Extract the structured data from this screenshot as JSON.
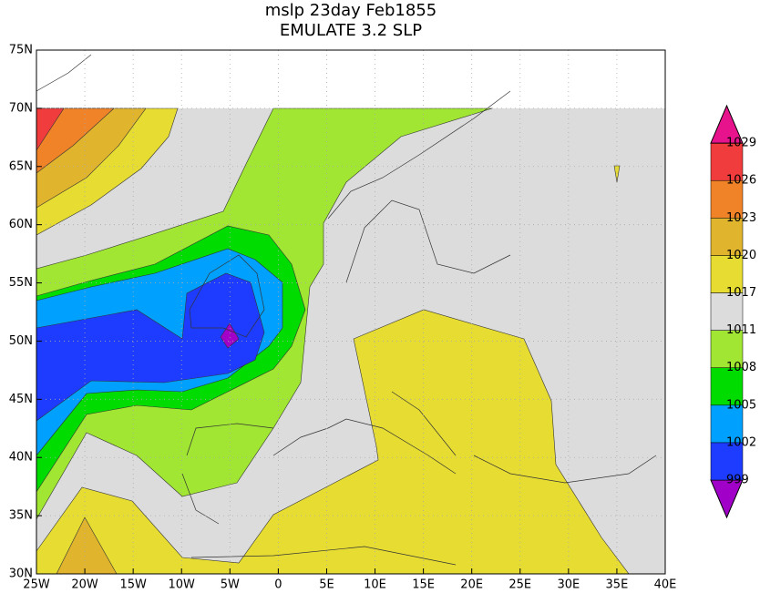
{
  "title_lines": [
    "mslp 23day Feb1855",
    "EMULATE 3.2 SLP"
  ],
  "map": {
    "xlim": [
      -25,
      40
    ],
    "ylim": [
      30,
      75
    ],
    "xticks": [
      {
        "value": -25,
        "label": "25W"
      },
      {
        "value": -20,
        "label": "20W"
      },
      {
        "value": -15,
        "label": "15W"
      },
      {
        "value": -10,
        "label": "10W"
      },
      {
        "value": -5,
        "label": "5W"
      },
      0,
      {
        "value": 5,
        "label": "5E"
      },
      {
        "value": 10,
        "label": "10E"
      },
      {
        "value": 15,
        "label": "15E"
      },
      {
        "value": 20,
        "label": "20E"
      },
      {
        "value": 25,
        "label": "25E"
      },
      {
        "value": 30,
        "label": "30E"
      },
      {
        "value": 35,
        "label": "35E"
      },
      {
        "value": 40,
        "label": "40E"
      }
    ],
    "yticks": [
      {
        "value": 30,
        "label": "30N"
      },
      {
        "value": 35,
        "label": "35N"
      },
      {
        "value": 40,
        "label": "40N"
      },
      {
        "value": 45,
        "label": "45N"
      },
      {
        "value": 50,
        "label": "50N"
      },
      {
        "value": 55,
        "label": "55N"
      },
      {
        "value": 60,
        "label": "60N"
      },
      {
        "value": 65,
        "label": "65N"
      },
      {
        "value": 70,
        "label": "70N"
      },
      {
        "value": 75,
        "label": "75N"
      }
    ]
  },
  "colorbar": {
    "levels": [
      999,
      1002,
      1005,
      1008,
      1011,
      1017,
      1020,
      1023,
      1026,
      1029
    ],
    "colors": [
      "#a000c8",
      "#1e3cff",
      "#00a0ff",
      "#00dc00",
      "#a0e632",
      "#dcdcdc",
      "#e6dc32",
      "#e1b42d",
      "#f08228",
      "#f03c3c",
      "#e6138c"
    ]
  }
}
